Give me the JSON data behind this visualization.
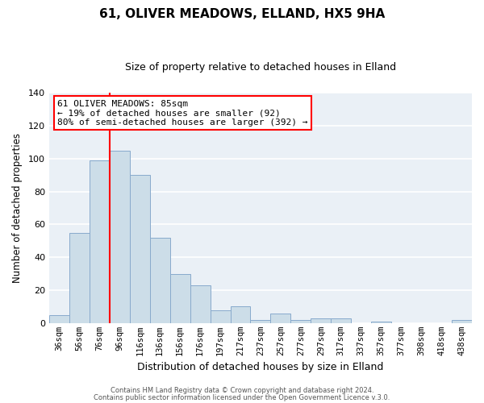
{
  "title": "61, OLIVER MEADOWS, ELLAND, HX5 9HA",
  "subtitle": "Size of property relative to detached houses in Elland",
  "xlabel": "Distribution of detached houses by size in Elland",
  "ylabel": "Number of detached properties",
  "bar_color": "#ccdde8",
  "bar_edge_color": "#88aacc",
  "background_color": "#eaf0f6",
  "categories": [
    "36sqm",
    "56sqm",
    "76sqm",
    "96sqm",
    "116sqm",
    "136sqm",
    "156sqm",
    "176sqm",
    "197sqm",
    "217sqm",
    "237sqm",
    "257sqm",
    "277sqm",
    "297sqm",
    "317sqm",
    "337sqm",
    "357sqm",
    "377sqm",
    "398sqm",
    "418sqm",
    "438sqm"
  ],
  "values": [
    5,
    55,
    99,
    105,
    90,
    52,
    30,
    23,
    8,
    10,
    2,
    6,
    2,
    3,
    3,
    0,
    1,
    0,
    0,
    0,
    2
  ],
  "ylim": [
    0,
    140
  ],
  "yticks": [
    0,
    20,
    40,
    60,
    80,
    100,
    120,
    140
  ],
  "red_line_index": 3,
  "annotation_line1": "61 OLIVER MEADOWS: 85sqm",
  "annotation_line2": "← 19% of detached houses are smaller (92)",
  "annotation_line3": "80% of semi-detached houses are larger (392) →",
  "footer1": "Contains HM Land Registry data © Crown copyright and database right 2024.",
  "footer2": "Contains public sector information licensed under the Open Government Licence v.3.0."
}
